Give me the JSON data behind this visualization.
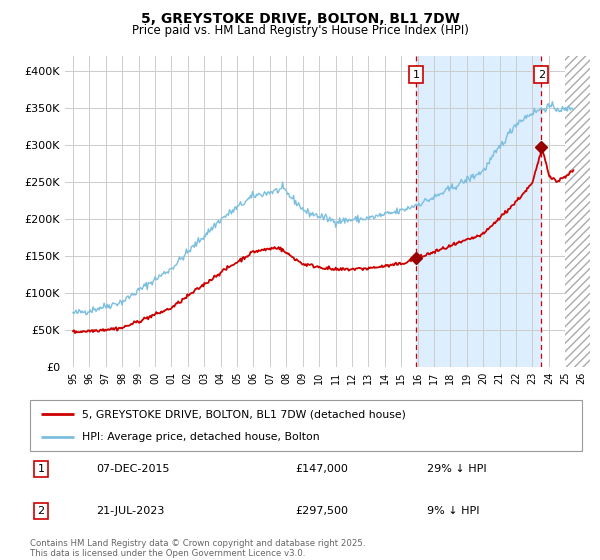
{
  "title": "5, GREYSTOKE DRIVE, BOLTON, BL1 7DW",
  "subtitle": "Price paid vs. HM Land Registry's House Price Index (HPI)",
  "ylim": [
    0,
    420000
  ],
  "yticks": [
    0,
    50000,
    100000,
    150000,
    200000,
    250000,
    300000,
    350000,
    400000
  ],
  "ytick_labels": [
    "£0",
    "£50K",
    "£100K",
    "£150K",
    "£200K",
    "£250K",
    "£300K",
    "£350K",
    "£400K"
  ],
  "hpi_color": "#7bbfe0",
  "price_color": "#cc0000",
  "marker_color": "#990000",
  "vline_color": "#cc0000",
  "background_color": "#ffffff",
  "grid_color": "#cccccc",
  "shade_color": "#ddeeff",
  "legend_label_price": "5, GREYSTOKE DRIVE, BOLTON, BL1 7DW (detached house)",
  "legend_label_hpi": "HPI: Average price, detached house, Bolton",
  "transaction1_date": "07-DEC-2015",
  "transaction1_price": "£147,000",
  "transaction1_note": "29% ↓ HPI",
  "transaction2_date": "21-JUL-2023",
  "transaction2_price": "£297,500",
  "transaction2_note": "9% ↓ HPI",
  "footer": "Contains HM Land Registry data © Crown copyright and database right 2025.\nThis data is licensed under the Open Government Licence v3.0.",
  "sale1_year": 2015.917,
  "sale1_price": 147000,
  "sale2_year": 2023.542,
  "sale2_price": 297500,
  "x_min": 1994.5,
  "x_max": 2026.5,
  "future_start": 2025.0
}
